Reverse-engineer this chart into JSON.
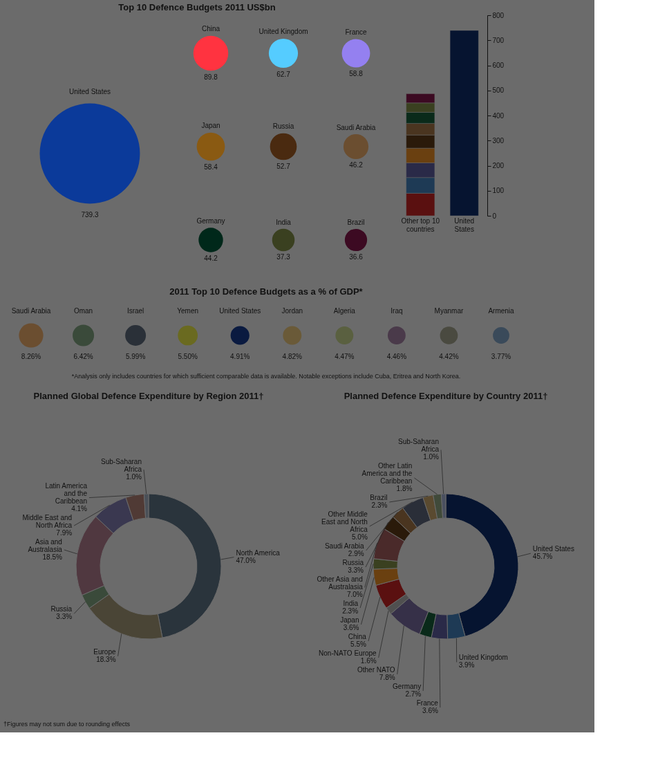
{
  "chart_data": [
    {
      "type": "other",
      "title": "Top 10 Defence Budgets 2011 US$bn",
      "categories": [
        "United States",
        "China",
        "United Kingdom",
        "France",
        "Japan",
        "Russia",
        "Saudi Arabia",
        "Germany",
        "India",
        "Brazil"
      ],
      "values": [
        739.3,
        89.8,
        62.7,
        58.8,
        58.4,
        52.7,
        46.2,
        44.2,
        37.3,
        36.6
      ],
      "colors": [
        "#0b3a9a",
        "#ff3340",
        "#55ccff",
        "#9480f0",
        "#8a5a12",
        "#4a2a10",
        "#6b4e30",
        "#00281a",
        "#3a4020",
        "#3c0a22"
      ],
      "data_labels": true
    },
    {
      "type": "bar",
      "stacked": true,
      "categories": [
        "Other top 10 countries",
        "United States"
      ],
      "series": [
        {
          "color": "#5a1010",
          "values": [
            89.8,
            null
          ]
        },
        {
          "color": "#1e3a55",
          "values": [
            62.7,
            null
          ]
        },
        {
          "color": "#2a2a48",
          "values": [
            58.8,
            null
          ]
        },
        {
          "color": "#6a4010",
          "values": [
            58.4,
            null
          ]
        },
        {
          "color": "#2a1a0a",
          "values": [
            52.7,
            null
          ]
        },
        {
          "color": "#4a3520",
          "values": [
            46.2,
            null
          ]
        },
        {
          "color": "#0a2a1a",
          "values": [
            44.2,
            null
          ]
        },
        {
          "color": "#3a4020",
          "values": [
            37.3,
            null
          ]
        },
        {
          "color": "#3c0a22",
          "values": [
            36.6,
            null
          ]
        },
        {
          "color": "#061430",
          "values": [
            null,
            739.3
          ]
        }
      ],
      "ylim": [
        0,
        800
      ],
      "yticks": [
        0,
        100,
        200,
        300,
        400,
        500,
        600,
        700,
        800
      ]
    },
    {
      "type": "other",
      "title": "2011 Top 10 Defence Budgets as a % of GDP*",
      "categories": [
        "Saudi Arabia",
        "Oman",
        "Israel",
        "Yemen",
        "United States",
        "Jordan",
        "Algeria",
        "Iraq",
        "Myanmar",
        "Armenia"
      ],
      "values": [
        8.26,
        6.42,
        5.99,
        5.5,
        4.91,
        4.82,
        4.47,
        4.46,
        4.42,
        3.77
      ],
      "value_labels": [
        "8.26%",
        "6.42%",
        "5.99%",
        "5.50%",
        "4.91%",
        "4.82%",
        "4.47%",
        "4.46%",
        "4.42%",
        "3.77%"
      ],
      "colors": [
        "#6b4e30",
        "#3a4a3a",
        "#2a3038",
        "#6a6a20",
        "#0a1a40",
        "#6a5a38",
        "#5a6040",
        "#4a3a4a",
        "#4a4a40",
        "#3a4a5a"
      ],
      "annotations": [
        "*Analysis only includes countries for which sufficient comparable data is available. Notable exceptions include Cuba, Eritrea and North Korea."
      ]
    },
    {
      "type": "donut",
      "title": "Planned Global Defence Expenditure by Region 2011†",
      "categories": [
        "North America",
        "Europe",
        "Russia",
        "Asia and Australasia",
        "Middle East and North Africa",
        "Latin America and the Caribbean",
        "Sub-Saharan Africa"
      ],
      "values": [
        47.0,
        18.3,
        3.3,
        18.5,
        7.9,
        4.1,
        1.0
      ],
      "value_labels": [
        "47.0%",
        "18.3%",
        "3.3%",
        "18.5%",
        "7.9%",
        "4.1%",
        "1.0%"
      ],
      "colors": [
        "#2a343c",
        "#4a4536",
        "#3a4a3a",
        "#503840",
        "#3a3850",
        "#503a35",
        "#4a5058"
      ],
      "annotations": [
        "†Figures may not sum due to rounding effects"
      ]
    },
    {
      "type": "donut",
      "title": "Planned Defence Expenditure by Country 2011†",
      "categories": [
        "United States",
        "United Kingdom",
        "France",
        "Germany",
        "Other NATO",
        "Non-NATO Europe",
        "China",
        "Japan",
        "India",
        "Other Asia and Australasia",
        "Russia",
        "Saudi Arabia",
        "Other Middle East and North Africa",
        "Brazil",
        "Other Latin America and the Caribbean",
        "Sub-Saharan Africa"
      ],
      "values": [
        45.7,
        3.9,
        3.6,
        2.7,
        7.8,
        1.6,
        5.5,
        3.6,
        2.3,
        7.0,
        3.3,
        2.9,
        5.0,
        2.3,
        1.8,
        1.0
      ],
      "value_labels": [
        "45.7%",
        "3.9%",
        "3.6%",
        "2.7%",
        "7.8%",
        "1.6%",
        "5.5%",
        "3.6%",
        "2.3%",
        "7.0%",
        "3.3%",
        "2.9%",
        "5.0%",
        "2.3%",
        "1.8%",
        "1.0%"
      ],
      "colors": [
        "#061430",
        "#1e3a55",
        "#2a2a48",
        "#0a2a1a",
        "#363048",
        "#505050",
        "#5a1010",
        "#6a4010",
        "#3a4020",
        "#4a2a2a",
        "#2a1a0a",
        "#4a3520",
        "#2a2e38",
        "#5a4a30",
        "#404a3a",
        "#4a5060"
      ]
    }
  ]
}
